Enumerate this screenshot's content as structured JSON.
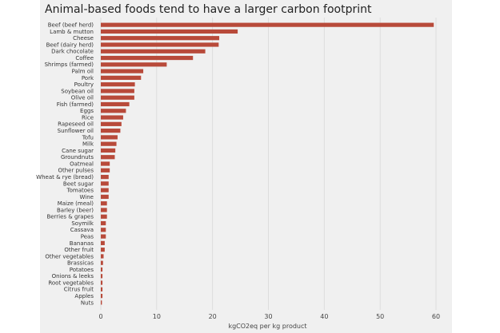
{
  "chart_data": {
    "type": "bar",
    "orientation": "horizontal",
    "title": "Animal-based foods tend to have a larger carbon footprint",
    "xlabel": "kgCO2eq per kg product",
    "ylabel": "",
    "xlim": [
      0,
      60
    ],
    "xticks": [
      "0",
      "10",
      "20",
      "30",
      "40",
      "50",
      "60"
    ],
    "grid": "vertical",
    "bar_color": "#b84a3a",
    "categories": [
      "Beef (beef herd)",
      "Lamb & mutton",
      "Cheese",
      "Beef (dairy herd)",
      "Dark chocolate",
      "Coffee",
      "Shrimps (farmed)",
      "Palm oil",
      "Pork",
      "Poultry",
      "Soybean oil",
      "Olive oil",
      "Fish (farmed)",
      "Eggs",
      "Rice",
      "Rapeseed oil",
      "Sunflower oil",
      "Tofu",
      "Milk",
      "Cane sugar",
      "Groundnuts",
      "Oatmeal",
      "Other pulses",
      "Wheat & rye (bread)",
      "Beet sugar",
      "Tomatoes",
      "Wine",
      "Maize (meal)",
      "Barley (beer)",
      "Berries & grapes",
      "Soymilk",
      "Cassava",
      "Peas",
      "Bananas",
      "Other fruit",
      "Other vegetables",
      "Brassicas",
      "Potatoes",
      "Onions & leeks",
      "Root vegetables",
      "Citrus fruit",
      "Apples",
      "Nuts"
    ],
    "values": [
      59.6,
      24.5,
      21.2,
      21.1,
      18.7,
      16.5,
      11.8,
      7.6,
      7.2,
      6.1,
      6.0,
      6.0,
      5.1,
      4.5,
      4.0,
      3.7,
      3.5,
      3.0,
      2.8,
      2.6,
      2.5,
      1.6,
      1.6,
      1.4,
      1.4,
      1.4,
      1.4,
      1.1,
      1.1,
      1.1,
      0.9,
      0.9,
      0.9,
      0.7,
      0.7,
      0.5,
      0.4,
      0.3,
      0.3,
      0.3,
      0.3,
      0.3,
      0.2
    ]
  }
}
